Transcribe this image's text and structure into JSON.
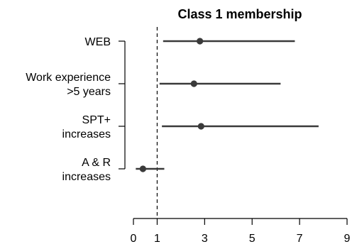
{
  "chart_data": {
    "type": "forest",
    "title": "Class 1 membership",
    "xlabel": "",
    "ylabel": "",
    "xlim": [
      0,
      9
    ],
    "xticks": [
      0,
      1,
      3,
      5,
      7,
      9
    ],
    "reference_line": 1,
    "categories": [
      {
        "label_lines": [
          "WEB"
        ],
        "estimate": 2.8,
        "lower": 1.25,
        "upper": 6.8
      },
      {
        "label_lines": [
          "Work experience",
          ">5 years"
        ],
        "estimate": 2.55,
        "lower": 1.1,
        "upper": 6.2
      },
      {
        "label_lines": [
          "SPT+",
          "increases"
        ],
        "estimate": 2.85,
        "lower": 1.2,
        "upper": 7.8
      },
      {
        "label_lines": [
          "A & R",
          "increases"
        ],
        "estimate": 0.4,
        "lower": 0.1,
        "upper": 1.3
      }
    ]
  }
}
